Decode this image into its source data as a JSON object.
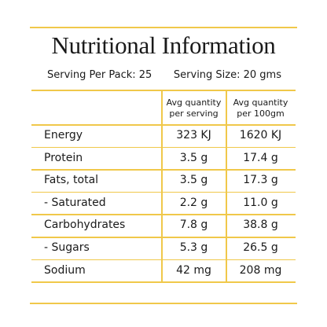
{
  "header": {
    "title": "Nutritional Information"
  },
  "serving": {
    "per_pack": "Serving Per Pack: 25",
    "size": "Serving Size: 20 gms"
  },
  "table": {
    "columns": [
      "Avg quantity per serving",
      "Avg quantity per 100gm"
    ],
    "rows": [
      [
        "Energy",
        "323 KJ",
        "1620 KJ"
      ],
      [
        "Protein",
        "3.5 g",
        "17.4 g"
      ],
      [
        "Fats, total",
        "3.5 g",
        "17.3 g"
      ],
      [
        "- Saturated",
        "2.2 g",
        "11.0 g"
      ],
      [
        "Carbohydrates",
        "7.8 g",
        "38.8 g"
      ],
      [
        "- Sugars",
        "5.3 g",
        "26.5 g"
      ],
      [
        "Sodium",
        "42 mg",
        "208 mg"
      ]
    ]
  }
}
